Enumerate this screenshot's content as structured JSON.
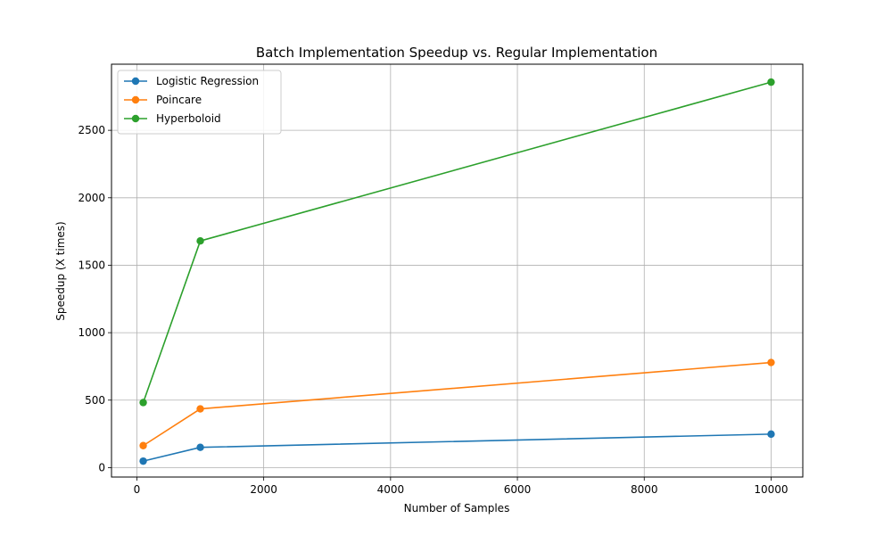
{
  "chart_data": {
    "type": "line",
    "title": "Batch Implementation Speedup vs. Regular Implementation",
    "xlabel": "Number of Samples",
    "ylabel": "Speedup (X times)",
    "x": [
      100,
      1000,
      10000
    ],
    "xlim": [
      -400,
      10500
    ],
    "ylim": [
      -70,
      2990
    ],
    "x_ticks": [
      0,
      2000,
      4000,
      6000,
      8000,
      10000
    ],
    "y_ticks": [
      0,
      500,
      1000,
      1500,
      2000,
      2500
    ],
    "x_tick_labels": [
      "0",
      "2000",
      "4000",
      "6000",
      "8000",
      "10000"
    ],
    "y_tick_labels": [
      "0",
      "500",
      "1000",
      "1500",
      "2000",
      "2500"
    ],
    "grid": true,
    "legend_position": "top-left",
    "series": [
      {
        "name": "Logistic Regression",
        "color": "#1f77b4",
        "values": [
          48,
          150,
          248
        ]
      },
      {
        "name": "Poincare",
        "color": "#ff7f0e",
        "values": [
          163,
          435,
          779
        ]
      },
      {
        "name": "Hyperboloid",
        "color": "#2ca02c",
        "values": [
          482,
          1680,
          2857
        ]
      }
    ]
  }
}
